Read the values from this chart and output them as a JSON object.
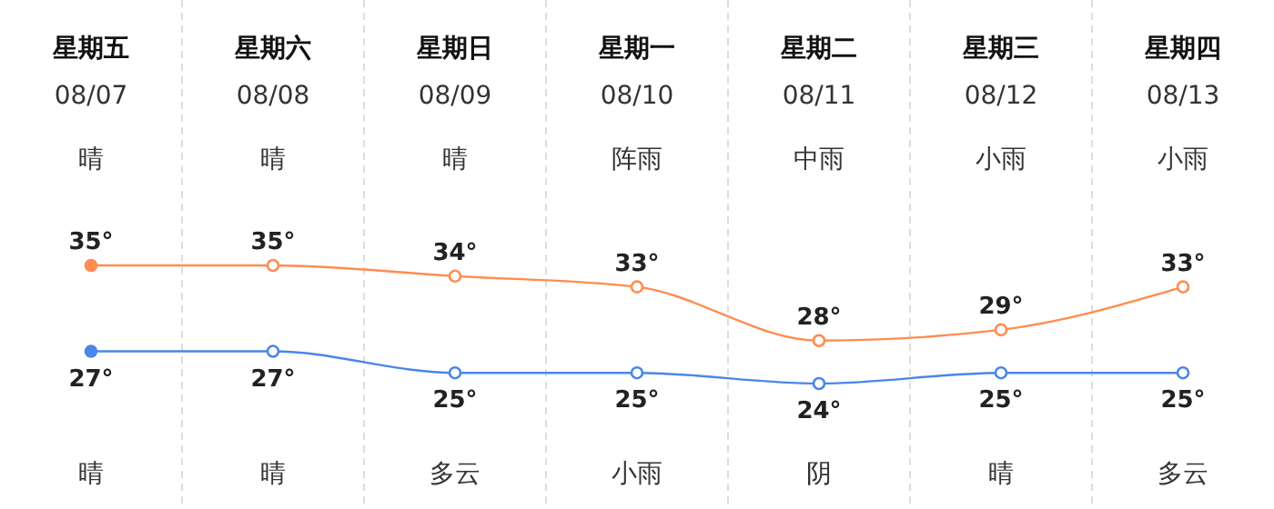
{
  "chart_data": {
    "type": "line",
    "categories": [
      "星期五",
      "星期六",
      "星期日",
      "星期一",
      "星期二",
      "星期三",
      "星期四"
    ],
    "series": [
      {
        "color": "#ff8c50",
        "values": [
          35,
          35,
          34,
          33,
          28,
          29,
          33
        ],
        "value_labels": [
          "35°",
          "35°",
          "34°",
          "33°",
          "28°",
          "29°",
          "33°"
        ]
      },
      {
        "color": "#4a86e8",
        "values": [
          27,
          27,
          25,
          25,
          24,
          25,
          25
        ],
        "value_labels": [
          "27°",
          "27°",
          "25°",
          "25°",
          "24°",
          "25°",
          "25°"
        ]
      }
    ],
    "annotations": [
      "08/07",
      "08/08",
      "08/09",
      "08/10",
      "08/11",
      "08/12",
      "08/13",
      "晴",
      "晴",
      "晴",
      "阵雨",
      "中雨",
      "小雨",
      "小雨",
      "晴",
      "晴",
      "多云",
      "小雨",
      "阴",
      "晴",
      "多云"
    ],
    "grid": "x",
    "marker": "circle",
    "line_style": "solid"
  }
}
